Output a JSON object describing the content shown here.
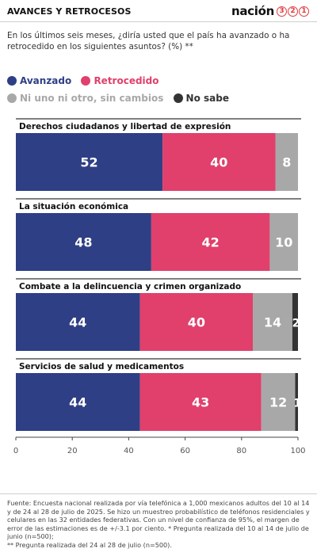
{
  "header": {
    "title": "AVANCES Y RETROCESOS",
    "logo_word": "nación",
    "logo_digits": [
      "3",
      "2",
      "1"
    ]
  },
  "question": "En los últimos seis meses, ¿diría usted que el país ha avanzado o ha retrocedido en los siguientes asuntos?  (%) **",
  "legend": [
    {
      "label": "Avanzado",
      "color": "#2f3f85"
    },
    {
      "label": "Retrocedido",
      "color": "#e0406b"
    },
    {
      "label": "Ni uno ni otro, sin cambios",
      "color": "#a8a8a8"
    },
    {
      "label": "No sabe",
      "color": "#333333"
    }
  ],
  "chart_data": {
    "type": "bar",
    "orientation": "horizontal",
    "stacked": true,
    "categories": [
      "Derechos ciudadanos y libertad de expresión",
      "La situación económica",
      "Combate a la delincuencia y crimen organizado",
      "Servicios de salud y medicamentos"
    ],
    "series": [
      {
        "name": "Avanzado",
        "color": "#2f3f85",
        "values": [
          52,
          48,
          44,
          44
        ],
        "labels": [
          "52",
          "48",
          "44",
          "44"
        ]
      },
      {
        "name": "Retrocedido",
        "color": "#e0406b",
        "values": [
          40,
          42,
          40,
          43
        ],
        "labels": [
          "40",
          "42",
          "40",
          "43"
        ]
      },
      {
        "name": "Ni uno ni otro, sin cambios",
        "color": "#a8a8a8",
        "values": [
          8,
          10,
          14,
          12
        ],
        "labels": [
          "8",
          "10",
          "14",
          "12"
        ]
      },
      {
        "name": "No sabe",
        "color": "#333333",
        "values": [
          0,
          0,
          2,
          1
        ],
        "labels": [
          "",
          "",
          "2",
          "1"
        ]
      }
    ],
    "xlim": [
      0,
      100
    ],
    "xticks": [
      0,
      20,
      40,
      60,
      80,
      100
    ],
    "grid": false
  },
  "footer": {
    "lines": [
      "Fuente:  Encuesta nacional realizada por vía telefónica a 1,000 mexicanos adultos del 10 al 14 y de 24 al 28 de julio de 2025. Se hizo un muestreo probabilístico de teléfonos residenciales y celulares en las 32 entidades federativas. Con un nivel de confianza de 95%, el margen de error de las estimaciones es de +/-3.1 por ciento. * Pregunta realizada del 10 al 14 de julio de junio (n=500);",
      "** Pregunta realizada del 24 al 28 de julio (n=500)."
    ]
  }
}
